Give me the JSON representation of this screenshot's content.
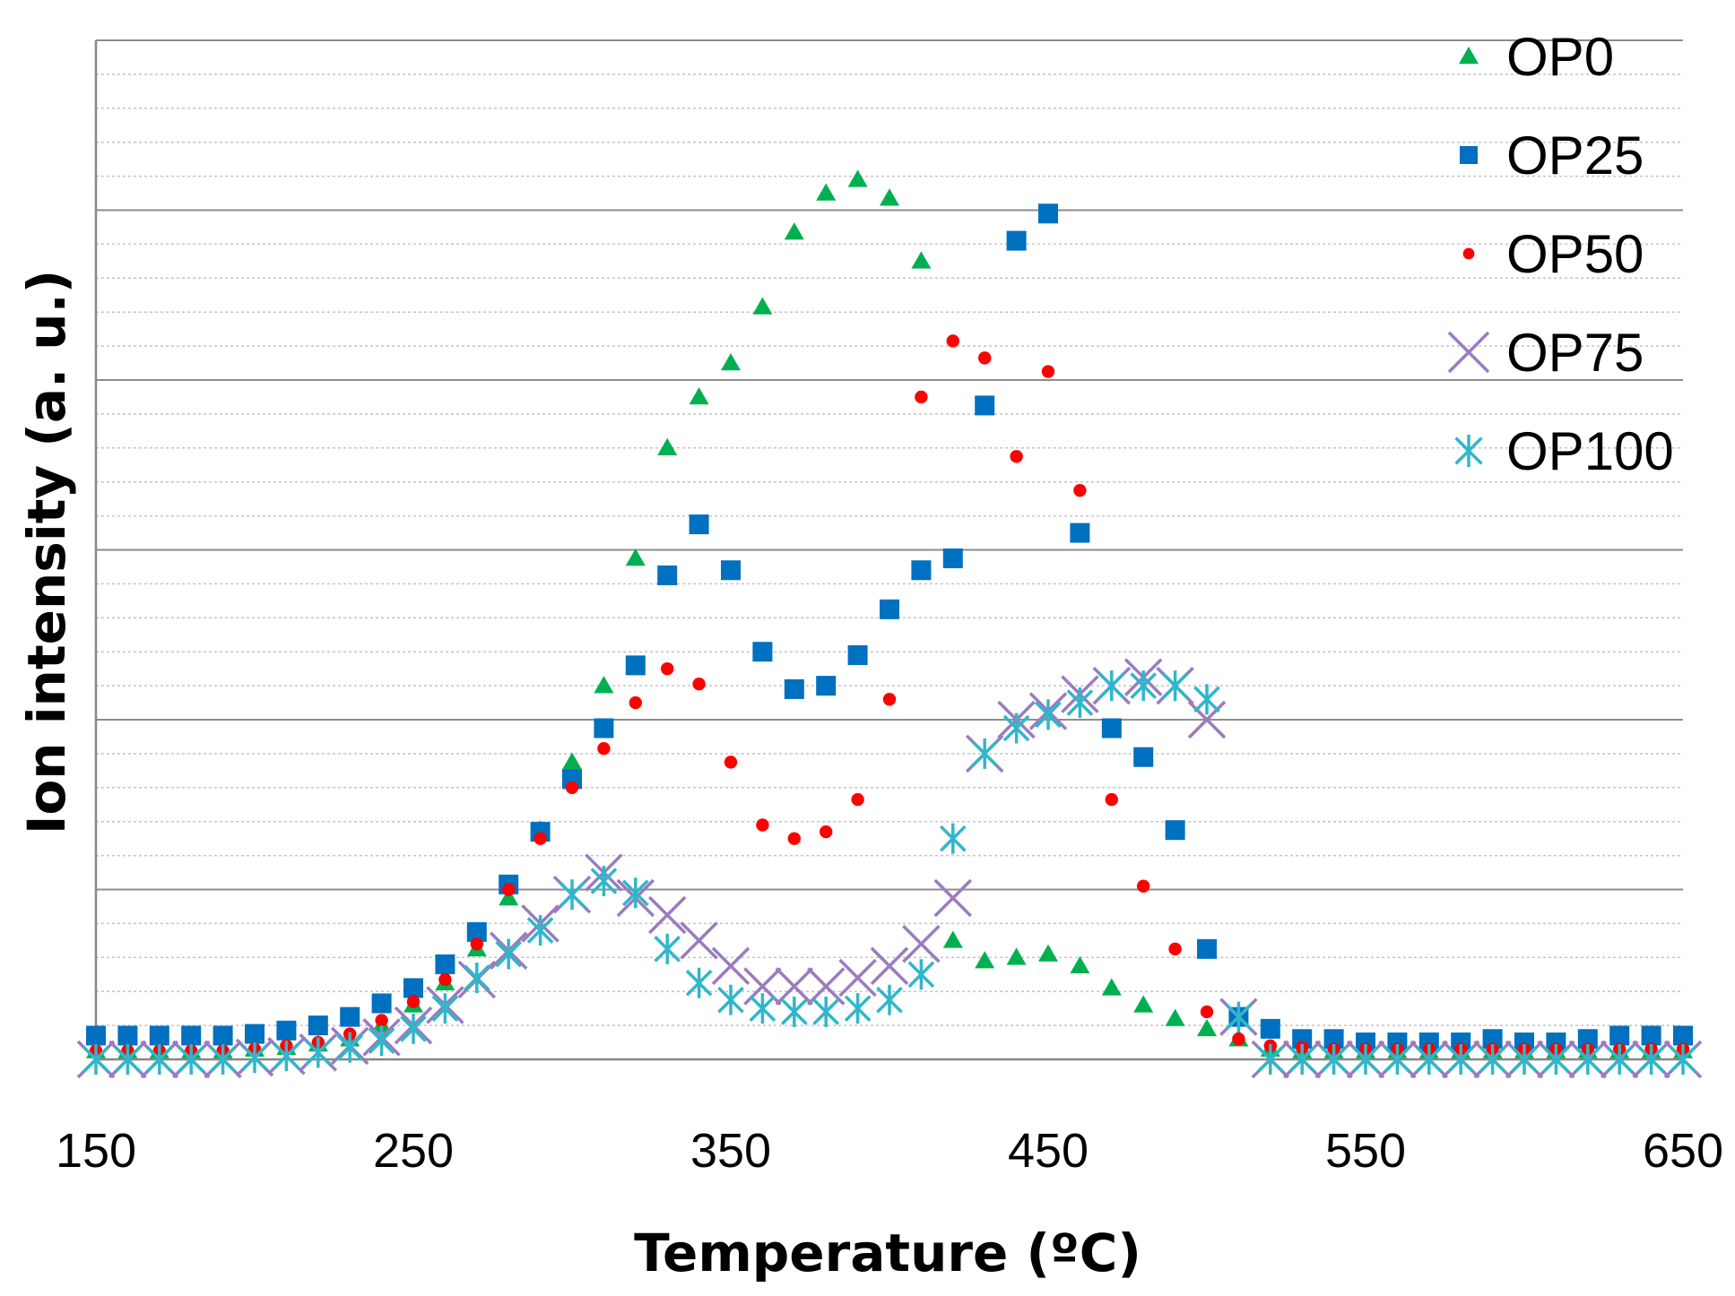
{
  "chart_data": {
    "type": "scatter",
    "title": "",
    "xlabel": "Temperature (ºC)",
    "ylabel": "Ion intensity (a. u.)",
    "xlim": [
      150,
      650
    ],
    "ylim": [
      0,
      6
    ],
    "x_ticks": [
      "150",
      "250",
      "350",
      "450",
      "550",
      "650"
    ],
    "y_tick_labels_shown": false,
    "grid": "horizontal major and minor",
    "legend_position": "top-right",
    "series": [
      {
        "name": "OP0",
        "marker": "triangle",
        "color": "#00B050",
        "x": [
          150,
          160,
          170,
          180,
          190,
          200,
          210,
          220,
          230,
          240,
          250,
          260,
          270,
          280,
          290,
          300,
          310,
          320,
          330,
          340,
          350,
          360,
          370,
          380,
          390,
          400,
          410,
          420,
          430,
          440,
          450,
          460,
          470,
          480,
          490,
          500,
          510,
          520,
          530,
          540,
          550,
          560,
          570,
          580,
          590,
          600,
          610,
          620,
          630,
          640,
          650
        ],
        "y": [
          0.05,
          0.05,
          0.05,
          0.05,
          0.05,
          0.06,
          0.07,
          0.09,
          0.12,
          0.2,
          0.32,
          0.45,
          0.65,
          0.95,
          1.35,
          1.75,
          2.2,
          2.95,
          3.6,
          3.9,
          4.1,
          4.43,
          4.87,
          5.1,
          5.18,
          5.07,
          4.7,
          0.7,
          0.58,
          0.6,
          0.62,
          0.55,
          0.42,
          0.32,
          0.24,
          0.18,
          0.12,
          0.06,
          0.05,
          0.05,
          0.05,
          0.05,
          0.05,
          0.05,
          0.05,
          0.05,
          0.05,
          0.05,
          0.05,
          0.05,
          0.05
        ]
      },
      {
        "name": "OP25",
        "marker": "square",
        "color": "#0070C0",
        "x": [
          150,
          160,
          170,
          180,
          190,
          200,
          210,
          220,
          230,
          240,
          250,
          260,
          270,
          280,
          290,
          300,
          310,
          320,
          330,
          340,
          350,
          360,
          370,
          380,
          390,
          400,
          410,
          420,
          430,
          440,
          450,
          460,
          470,
          480,
          490,
          500,
          510,
          520,
          530,
          540,
          550,
          560,
          570,
          580,
          590,
          600,
          610,
          620,
          630,
          640,
          650
        ],
        "y": [
          0.14,
          0.14,
          0.14,
          0.14,
          0.14,
          0.15,
          0.17,
          0.2,
          0.25,
          0.33,
          0.42,
          0.56,
          0.75,
          1.03,
          1.34,
          1.65,
          1.95,
          2.32,
          2.85,
          3.15,
          2.88,
          2.4,
          2.18,
          2.2,
          2.38,
          2.65,
          2.88,
          2.95,
          3.85,
          4.82,
          4.98,
          3.1,
          1.95,
          1.78,
          1.35,
          0.65,
          0.25,
          0.18,
          0.12,
          0.12,
          0.1,
          0.1,
          0.1,
          0.1,
          0.12,
          0.1,
          0.1,
          0.12,
          0.14,
          0.14,
          0.14
        ]
      },
      {
        "name": "OP50",
        "marker": "circle",
        "color": "#FF0000",
        "x": [
          150,
          160,
          170,
          180,
          190,
          200,
          210,
          220,
          230,
          240,
          250,
          260,
          270,
          280,
          290,
          300,
          310,
          320,
          330,
          340,
          350,
          360,
          370,
          380,
          390,
          400,
          410,
          420,
          430,
          440,
          450,
          460,
          470,
          480,
          490,
          500,
          510,
          520,
          530,
          540,
          550,
          560,
          570,
          580,
          590,
          600,
          610,
          620,
          630,
          640,
          650
        ],
        "y": [
          0.05,
          0.05,
          0.05,
          0.05,
          0.05,
          0.06,
          0.08,
          0.1,
          0.15,
          0.23,
          0.34,
          0.47,
          0.68,
          1.0,
          1.3,
          1.6,
          1.83,
          2.1,
          2.3,
          2.21,
          1.75,
          1.38,
          1.3,
          1.34,
          1.53,
          2.12,
          3.9,
          4.23,
          4.13,
          3.55,
          4.05,
          3.35,
          1.53,
          1.02,
          0.65,
          0.28,
          0.12,
          0.08,
          0.07,
          0.06,
          0.06,
          0.06,
          0.06,
          0.06,
          0.06,
          0.06,
          0.06,
          0.06,
          0.06,
          0.06,
          0.06
        ]
      },
      {
        "name": "OP75",
        "marker": "x",
        "color": "#9B7BBF",
        "x": [
          150,
          160,
          170,
          180,
          190,
          200,
          210,
          220,
          230,
          240,
          250,
          260,
          270,
          280,
          290,
          300,
          310,
          320,
          330,
          340,
          350,
          360,
          370,
          380,
          390,
          400,
          410,
          420,
          430,
          440,
          450,
          460,
          470,
          480,
          490,
          500,
          510,
          520,
          530,
          540,
          550,
          560,
          570,
          580,
          590,
          600,
          610,
          620,
          630,
          640,
          650
        ],
        "y": [
          0.0,
          0.0,
          0.0,
          0.0,
          0.0,
          0.01,
          0.02,
          0.04,
          0.08,
          0.13,
          0.2,
          0.32,
          0.47,
          0.64,
          0.8,
          0.97,
          1.1,
          0.95,
          0.85,
          0.7,
          0.55,
          0.43,
          0.43,
          0.43,
          0.48,
          0.55,
          0.68,
          0.95,
          1.8,
          2.0,
          2.05,
          2.15,
          2.2,
          2.25,
          2.2,
          2.0,
          0.25,
          0.0,
          0.0,
          0.0,
          0.0,
          0.0,
          0.0,
          0.0,
          0.0,
          0.0,
          0.0,
          0.0,
          0.0,
          0.0,
          0.0
        ]
      },
      {
        "name": "OP100",
        "marker": "asterisk",
        "color": "#2FB7C9",
        "x": [
          150,
          160,
          170,
          180,
          190,
          200,
          210,
          220,
          230,
          240,
          250,
          260,
          270,
          280,
          290,
          300,
          310,
          320,
          330,
          340,
          350,
          360,
          370,
          380,
          390,
          400,
          410,
          420,
          430,
          440,
          450,
          460,
          470,
          480,
          490,
          500,
          510,
          520,
          530,
          540,
          550,
          560,
          570,
          580,
          590,
          600,
          610,
          620,
          630,
          640,
          650
        ],
        "y": [
          0.0,
          0.0,
          0.0,
          0.0,
          0.0,
          0.01,
          0.02,
          0.04,
          0.07,
          0.11,
          0.18,
          0.3,
          0.48,
          0.62,
          0.76,
          0.97,
          1.05,
          0.98,
          0.65,
          0.45,
          0.35,
          0.3,
          0.28,
          0.28,
          0.3,
          0.35,
          0.5,
          1.3,
          1.8,
          1.95,
          2.03,
          2.1,
          2.2,
          2.2,
          2.2,
          2.12,
          0.25,
          0.0,
          0.0,
          0.0,
          0.0,
          0.0,
          0.0,
          0.0,
          0.0,
          0.0,
          0.0,
          0.0,
          0.0,
          0.0,
          0.0
        ]
      }
    ]
  }
}
